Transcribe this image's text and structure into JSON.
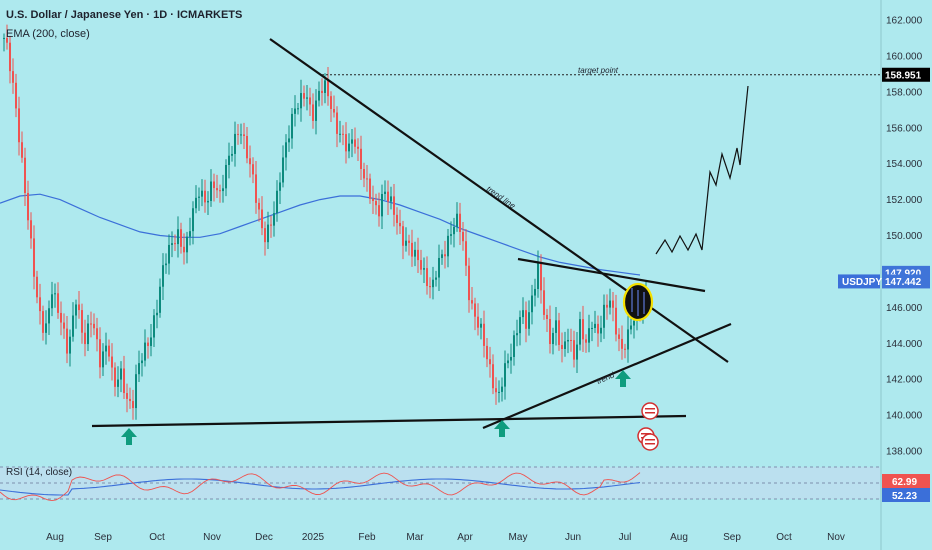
{
  "header": {
    "title": "U.S. Dollar / Japanese Yen · 1D · ICMARKETS",
    "indicator": "EMA (200, close)",
    "rsi_label": "RSI (14, close)"
  },
  "chart_data": {
    "type": "candlestick",
    "symbol": "USDJPY",
    "ylim": [
      138,
      162
    ],
    "y_ticks": [
      138,
      140,
      142,
      144,
      146,
      148,
      150,
      152,
      154,
      156,
      158,
      160,
      162
    ],
    "x_ticks": [
      "Aug",
      "Sep",
      "Oct",
      "Nov",
      "Dec",
      "2025",
      "Feb",
      "Mar",
      "Apr",
      "May",
      "Jun",
      "Jul",
      "Aug",
      "Sep",
      "Oct",
      "Nov"
    ],
    "price_path": [
      [
        0,
        161.7
      ],
      [
        8,
        160.3
      ],
      [
        15,
        157.5
      ],
      [
        22,
        154.0
      ],
      [
        30,
        150.0
      ],
      [
        38,
        146.0
      ],
      [
        45,
        144.5
      ],
      [
        52,
        147.0
      ],
      [
        60,
        145.5
      ],
      [
        68,
        143.5
      ],
      [
        76,
        146.5
      ],
      [
        84,
        144.0
      ],
      [
        92,
        145.5
      ],
      [
        100,
        143.0
      ],
      [
        108,
        144.0
      ],
      [
        114,
        141.5
      ],
      [
        120,
        142.5
      ],
      [
        126,
        141.0
      ],
      [
        132,
        140.3
      ],
      [
        137,
        142.5
      ],
      [
        143,
        143.5
      ],
      [
        150,
        144.2
      ],
      [
        157,
        146.0
      ],
      [
        164,
        148.5
      ],
      [
        171,
        149.5
      ],
      [
        178,
        150.0
      ],
      [
        185,
        149.0
      ],
      [
        192,
        151.2
      ],
      [
        199,
        152.5
      ],
      [
        206,
        151.8
      ],
      [
        213,
        153.0
      ],
      [
        220,
        152.2
      ],
      [
        227,
        154.0
      ],
      [
        234,
        155.2
      ],
      [
        240,
        156.0
      ],
      [
        246,
        154.8
      ],
      [
        252,
        153.5
      ],
      [
        258,
        151.5
      ],
      [
        264,
        149.8
      ],
      [
        270,
        150.5
      ],
      [
        276,
        151.8
      ],
      [
        282,
        154.0
      ],
      [
        288,
        155.5
      ],
      [
        294,
        157.0
      ],
      [
        300,
        157.5
      ],
      [
        306,
        158.0
      ],
      [
        312,
        156.5
      ],
      [
        318,
        157.8
      ],
      [
        324,
        158.5
      ],
      [
        330,
        157.5
      ],
      [
        336,
        156.0
      ],
      [
        342,
        155.5
      ],
      [
        348,
        154.8
      ],
      [
        354,
        155.5
      ],
      [
        360,
        154.0
      ],
      [
        366,
        153.0
      ],
      [
        372,
        152.0
      ],
      [
        378,
        151.2
      ],
      [
        384,
        152.5
      ],
      [
        390,
        152.0
      ],
      [
        396,
        151.0
      ],
      [
        402,
        149.8
      ],
      [
        408,
        149.5
      ],
      [
        414,
        149.0
      ],
      [
        420,
        148.5
      ],
      [
        426,
        147.5
      ],
      [
        432,
        147.0
      ],
      [
        438,
        148.5
      ],
      [
        444,
        149.0
      ],
      [
        450,
        150.0
      ],
      [
        456,
        151.0
      ],
      [
        462,
        150.2
      ],
      [
        468,
        147.0
      ],
      [
        474,
        145.5
      ],
      [
        480,
        145.0
      ],
      [
        486,
        143.5
      ],
      [
        492,
        142.0
      ],
      [
        498,
        140.8
      ],
      [
        504,
        142.5
      ],
      [
        510,
        143.3
      ],
      [
        516,
        144.5
      ],
      [
        521,
        145.8
      ],
      [
        527,
        145.0
      ],
      [
        533,
        146.8
      ],
      [
        538,
        148.2
      ],
      [
        544,
        145.8
      ],
      [
        550,
        144.2
      ],
      [
        556,
        145.0
      ],
      [
        562,
        143.5
      ],
      [
        568,
        144.5
      ],
      [
        574,
        143.2
      ],
      [
        580,
        145.0
      ],
      [
        586,
        144.0
      ],
      [
        592,
        145.2
      ],
      [
        598,
        144.5
      ],
      [
        604,
        145.8
      ],
      [
        610,
        146.5
      ],
      [
        616,
        144.8
      ],
      [
        622,
        143.5
      ],
      [
        628,
        144.5
      ],
      [
        634,
        145.5
      ],
      [
        640,
        146.0
      ],
      [
        645,
        146.6
      ]
    ],
    "ema200_path": [
      [
        0,
        151.8
      ],
      [
        20,
        152.2
      ],
      [
        40,
        152.3
      ],
      [
        60,
        152.0
      ],
      [
        80,
        151.5
      ],
      [
        100,
        151.0
      ],
      [
        120,
        150.6
      ],
      [
        140,
        150.2
      ],
      [
        160,
        150.0
      ],
      [
        180,
        149.9
      ],
      [
        200,
        149.9
      ],
      [
        220,
        150.1
      ],
      [
        240,
        150.5
      ],
      [
        260,
        150.9
      ],
      [
        280,
        151.3
      ],
      [
        300,
        151.7
      ],
      [
        320,
        152.0
      ],
      [
        340,
        152.2
      ],
      [
        360,
        152.2
      ],
      [
        380,
        152.0
      ],
      [
        400,
        151.7
      ],
      [
        420,
        151.3
      ],
      [
        440,
        150.9
      ],
      [
        460,
        150.4
      ],
      [
        480,
        150.0
      ],
      [
        500,
        149.6
      ],
      [
        520,
        149.2
      ],
      [
        540,
        148.8
      ],
      [
        560,
        148.5
      ],
      [
        580,
        148.3
      ],
      [
        600,
        148.1
      ],
      [
        620,
        147.95
      ],
      [
        640,
        147.8
      ]
    ],
    "rsi_current": "62.99",
    "rsi_level_b": "52.23",
    "price_tags": [
      {
        "value": "158.951",
        "y": 158.951,
        "bg": "#000000"
      },
      {
        "value": "147.920",
        "y": 147.92,
        "bg": "#3f74d8"
      },
      {
        "value": "147.442",
        "y": 147.442,
        "bg": "#3f74d8"
      }
    ],
    "annotations": {
      "target_label": "target point",
      "target_value": 158.951,
      "trend_line_label": "trend line",
      "trend_label": "trend"
    }
  },
  "colors": {
    "background": "#aee9ee",
    "bull": "#0c8a7d",
    "bear": "#ef5350",
    "ema": "#3b6fd9",
    "rsi_line": "#3b6fd9",
    "rsi_signal": "#ef5350",
    "arrow": "#0f9c7e",
    "ellipse": "#f5e000"
  }
}
